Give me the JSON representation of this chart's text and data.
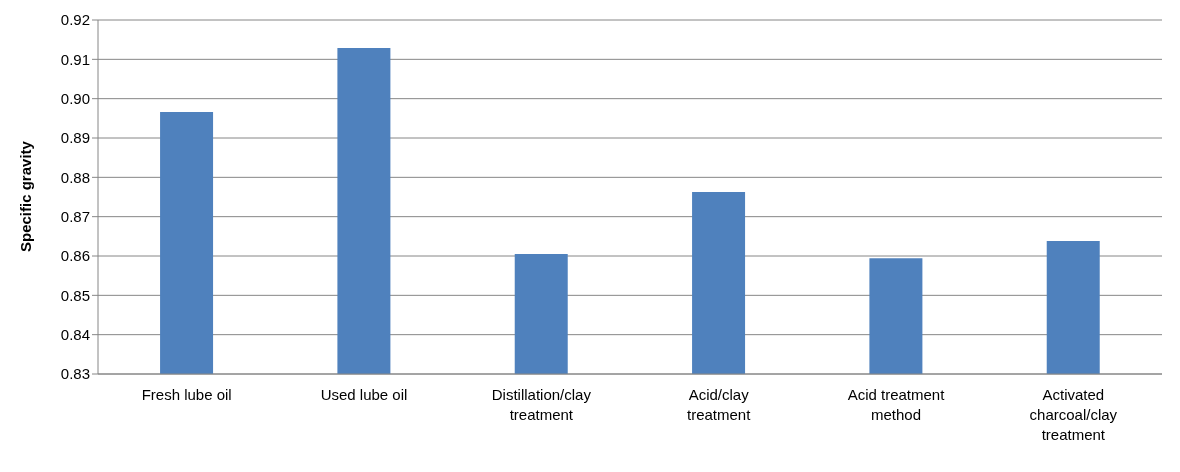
{
  "chart_data": {
    "type": "bar",
    "ylabel": "Specific gravity",
    "categories": [
      "Fresh lube oil",
      "Used lube oil",
      "Distillation/clay treatment",
      "Acid/clay treatment",
      "Acid treatment method",
      "Activated charcoal/clay treatment"
    ],
    "values": [
      0.8966,
      0.9129,
      0.8605,
      0.8763,
      0.8594,
      0.8638
    ],
    "color": "#4f81bd",
    "ylim": [
      0.83,
      0.92
    ],
    "yticks": [
      {
        "value": 0.83,
        "label": "0.83"
      },
      {
        "value": 0.84,
        "label": "0.84"
      },
      {
        "value": 0.85,
        "label": "0.85"
      },
      {
        "value": 0.86,
        "label": "0.86"
      },
      {
        "value": 0.87,
        "label": "0.87"
      },
      {
        "value": 0.88,
        "label": "0.88"
      },
      {
        "value": 0.89,
        "label": "0.89"
      },
      {
        "value": 0.9,
        "label": "0.90"
      },
      {
        "value": 0.91,
        "label": "0.91"
      },
      {
        "value": 0.92,
        "label": "0.92"
      }
    ],
    "grid": "y",
    "legend": false
  }
}
